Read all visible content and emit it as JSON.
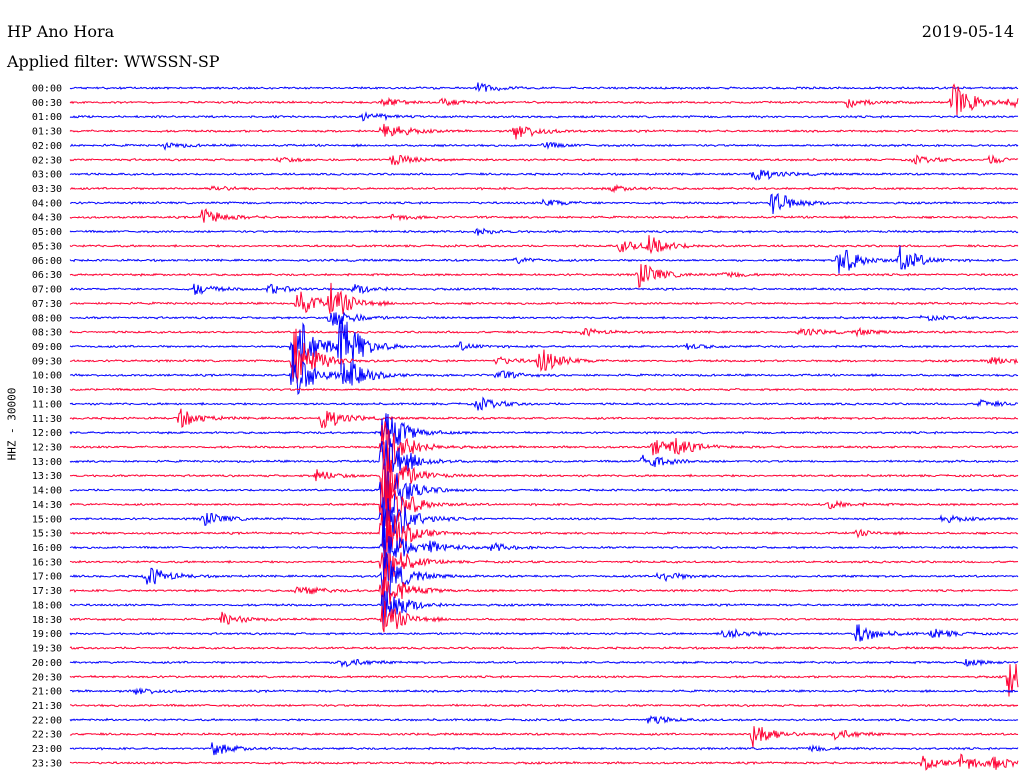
{
  "header": {
    "station": "HP Ano Hora",
    "date": "2019-05-14",
    "filter": "Applied filter: WWSSN-SP"
  },
  "colors": {
    "blue": "#0000ff",
    "red": "#ff0033"
  },
  "chart_data": {
    "type": "helicorder",
    "ylabel": "HHZ - 30000",
    "rows": [
      {
        "label": "00:00",
        "events": [
          {
            "x": 0.43,
            "amp": 5
          }
        ]
      },
      {
        "label": "00:30",
        "events": [
          {
            "x": 0.33,
            "amp": 4
          },
          {
            "x": 0.39,
            "amp": 4
          },
          {
            "x": 0.82,
            "amp": 5
          },
          {
            "x": 0.93,
            "amp": 22
          },
          {
            "x": 0.99,
            "amp": 5
          }
        ]
      },
      {
        "label": "01:00",
        "events": [
          {
            "x": 0.31,
            "amp": 5
          }
        ]
      },
      {
        "label": "01:30",
        "events": [
          {
            "x": 0.33,
            "amp": 11
          },
          {
            "x": 0.47,
            "amp": 10
          }
        ]
      },
      {
        "label": "02:00",
        "events": [
          {
            "x": 0.1,
            "amp": 3
          },
          {
            "x": 0.5,
            "amp": 3
          }
        ]
      },
      {
        "label": "02:30",
        "events": [
          {
            "x": 0.22,
            "amp": 3
          },
          {
            "x": 0.34,
            "amp": 6
          },
          {
            "x": 0.89,
            "amp": 4
          },
          {
            "x": 0.97,
            "amp": 4
          }
        ]
      },
      {
        "label": "03:00",
        "events": [
          {
            "x": 0.72,
            "amp": 9
          }
        ]
      },
      {
        "label": "03:30",
        "events": [
          {
            "x": 0.15,
            "amp": 3
          },
          {
            "x": 0.57,
            "amp": 3
          }
        ]
      },
      {
        "label": "04:00",
        "events": [
          {
            "x": 0.5,
            "amp": 4
          },
          {
            "x": 0.74,
            "amp": 14
          }
        ]
      },
      {
        "label": "04:30",
        "events": [
          {
            "x": 0.14,
            "amp": 10
          },
          {
            "x": 0.34,
            "amp": 3
          }
        ]
      },
      {
        "label": "05:00",
        "events": [
          {
            "x": 0.43,
            "amp": 3
          }
        ]
      },
      {
        "label": "05:30",
        "events": [
          {
            "x": 0.58,
            "amp": 6
          },
          {
            "x": 0.61,
            "amp": 10
          }
        ]
      },
      {
        "label": "06:00",
        "events": [
          {
            "x": 0.47,
            "amp": 3
          },
          {
            "x": 0.81,
            "amp": 18
          },
          {
            "x": 0.875,
            "amp": 14
          }
        ]
      },
      {
        "label": "06:30",
        "events": [
          {
            "x": 0.6,
            "amp": 14
          },
          {
            "x": 0.69,
            "amp": 3
          }
        ]
      },
      {
        "label": "07:00",
        "events": [
          {
            "x": 0.13,
            "amp": 6
          },
          {
            "x": 0.21,
            "amp": 5
          },
          {
            "x": 0.3,
            "amp": 5
          }
        ]
      },
      {
        "label": "07:30",
        "events": [
          {
            "x": 0.24,
            "amp": 14
          },
          {
            "x": 0.275,
            "amp": 18
          }
        ]
      },
      {
        "label": "08:00",
        "events": [
          {
            "x": 0.275,
            "amp": 12
          },
          {
            "x": 0.9,
            "amp": 3
          }
        ]
      },
      {
        "label": "08:30",
        "events": [
          {
            "x": 0.54,
            "amp": 4
          },
          {
            "x": 0.77,
            "amp": 5
          },
          {
            "x": 0.83,
            "amp": 3
          }
        ]
      },
      {
        "label": "09:00",
        "events": [
          {
            "x": 0.235,
            "amp": 42
          },
          {
            "x": 0.285,
            "amp": 34
          },
          {
            "x": 0.41,
            "amp": 4
          },
          {
            "x": 0.65,
            "amp": 3
          }
        ]
      },
      {
        "label": "09:30",
        "events": [
          {
            "x": 0.235,
            "amp": 40
          },
          {
            "x": 0.45,
            "amp": 4
          },
          {
            "x": 0.495,
            "amp": 14
          },
          {
            "x": 0.97,
            "amp": 6
          }
        ]
      },
      {
        "label": "10:00",
        "events": [
          {
            "x": 0.235,
            "amp": 30
          },
          {
            "x": 0.29,
            "amp": 18
          },
          {
            "x": 0.45,
            "amp": 5
          }
        ]
      },
      {
        "label": "10:30",
        "events": []
      },
      {
        "label": "11:00",
        "events": [
          {
            "x": 0.43,
            "amp": 7
          },
          {
            "x": 0.96,
            "amp": 4
          }
        ]
      },
      {
        "label": "11:30",
        "events": [
          {
            "x": 0.115,
            "amp": 10
          },
          {
            "x": 0.265,
            "amp": 14
          }
        ]
      },
      {
        "label": "12:00",
        "events": [
          {
            "x": 0.33,
            "amp": 30
          }
        ]
      },
      {
        "label": "12:30",
        "events": [
          {
            "x": 0.33,
            "amp": 40
          },
          {
            "x": 0.615,
            "amp": 8
          },
          {
            "x": 0.635,
            "amp": 9
          }
        ]
      },
      {
        "label": "13:00",
        "events": [
          {
            "x": 0.33,
            "amp": 40
          },
          {
            "x": 0.605,
            "amp": 10
          }
        ]
      },
      {
        "label": "13:30",
        "events": [
          {
            "x": 0.26,
            "amp": 6
          },
          {
            "x": 0.33,
            "amp": 40
          }
        ]
      },
      {
        "label": "14:00",
        "events": [
          {
            "x": 0.33,
            "amp": 45
          }
        ]
      },
      {
        "label": "14:30",
        "events": [
          {
            "x": 0.33,
            "amp": 45
          },
          {
            "x": 0.8,
            "amp": 4
          }
        ]
      },
      {
        "label": "15:00",
        "events": [
          {
            "x": 0.14,
            "amp": 8
          },
          {
            "x": 0.33,
            "amp": 45
          },
          {
            "x": 0.92,
            "amp": 4
          }
        ]
      },
      {
        "label": "15:30",
        "events": [
          {
            "x": 0.33,
            "amp": 40
          },
          {
            "x": 0.83,
            "amp": 3
          }
        ]
      },
      {
        "label": "16:00",
        "events": [
          {
            "x": 0.33,
            "amp": 30
          },
          {
            "x": 0.38,
            "amp": 5
          },
          {
            "x": 0.445,
            "amp": 4
          }
        ]
      },
      {
        "label": "16:30",
        "events": [
          {
            "x": 0.33,
            "amp": 30
          }
        ]
      },
      {
        "label": "17:00",
        "events": [
          {
            "x": 0.08,
            "amp": 12
          },
          {
            "x": 0.33,
            "amp": 30
          },
          {
            "x": 0.62,
            "amp": 7
          }
        ]
      },
      {
        "label": "17:30",
        "events": [
          {
            "x": 0.24,
            "amp": 6
          },
          {
            "x": 0.33,
            "amp": 25
          }
        ]
      },
      {
        "label": "18:00",
        "events": [
          {
            "x": 0.33,
            "amp": 25
          }
        ]
      },
      {
        "label": "18:30",
        "events": [
          {
            "x": 0.16,
            "amp": 7
          },
          {
            "x": 0.33,
            "amp": 20
          }
        ]
      },
      {
        "label": "19:00",
        "events": [
          {
            "x": 0.69,
            "amp": 7
          },
          {
            "x": 0.83,
            "amp": 11
          },
          {
            "x": 0.91,
            "amp": 5
          }
        ]
      },
      {
        "label": "19:30",
        "events": []
      },
      {
        "label": "20:00",
        "events": [
          {
            "x": 0.285,
            "amp": 6
          },
          {
            "x": 0.945,
            "amp": 3
          }
        ]
      },
      {
        "label": "20:30",
        "events": [
          {
            "x": 0.99,
            "amp": 20
          }
        ]
      },
      {
        "label": "21:00",
        "events": [
          {
            "x": 0.07,
            "amp": 4
          }
        ]
      },
      {
        "label": "21:30",
        "events": []
      },
      {
        "label": "22:00",
        "events": [
          {
            "x": 0.61,
            "amp": 5
          }
        ]
      },
      {
        "label": "22:30",
        "events": [
          {
            "x": 0.72,
            "amp": 14
          },
          {
            "x": 0.805,
            "amp": 6
          }
        ]
      },
      {
        "label": "23:00",
        "events": [
          {
            "x": 0.15,
            "amp": 7
          },
          {
            "x": 0.78,
            "amp": 3
          }
        ]
      },
      {
        "label": "23:30",
        "events": [
          {
            "x": 0.9,
            "amp": 7
          },
          {
            "x": 0.94,
            "amp": 9
          },
          {
            "x": 0.975,
            "amp": 6
          }
        ]
      }
    ]
  }
}
